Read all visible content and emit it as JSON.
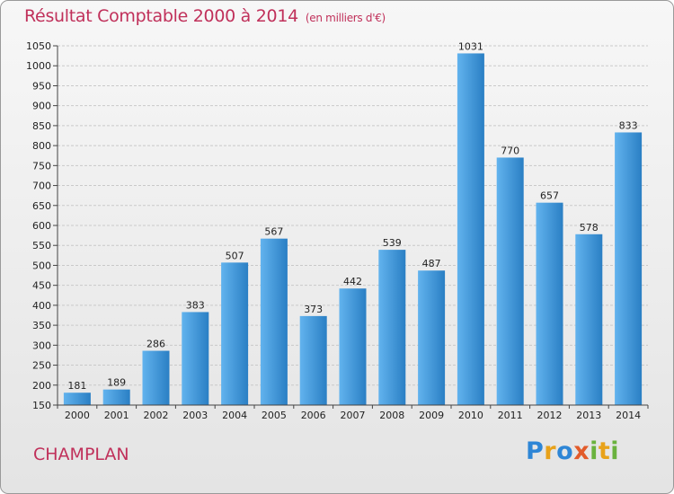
{
  "header": {
    "title": "Résultat Comptable 2000 à 2014",
    "subtitle": "(en milliers d'€)"
  },
  "footer": {
    "commune": "CHAMPLAN",
    "logo_letters": [
      "P",
      "r",
      "o",
      "x",
      "i",
      "t",
      "i"
    ]
  },
  "colors": {
    "bar_light": "#62b3ee",
    "bar_dark": "#2a7fc4",
    "title": "#c0305a"
  },
  "chart_data": {
    "type": "bar",
    "categories": [
      "2000",
      "2001",
      "2002",
      "2003",
      "2004",
      "2005",
      "2006",
      "2007",
      "2008",
      "2009",
      "2010",
      "2011",
      "2012",
      "2013",
      "2014"
    ],
    "values": [
      181,
      189,
      286,
      383,
      507,
      567,
      373,
      442,
      539,
      487,
      1031,
      770,
      657,
      578,
      833
    ],
    "ylim": [
      150,
      1050
    ],
    "yticks": [
      150,
      200,
      250,
      300,
      350,
      400,
      450,
      500,
      550,
      600,
      650,
      700,
      750,
      800,
      850,
      900,
      950,
      1000,
      1050
    ],
    "grid": true,
    "legend": "none"
  }
}
